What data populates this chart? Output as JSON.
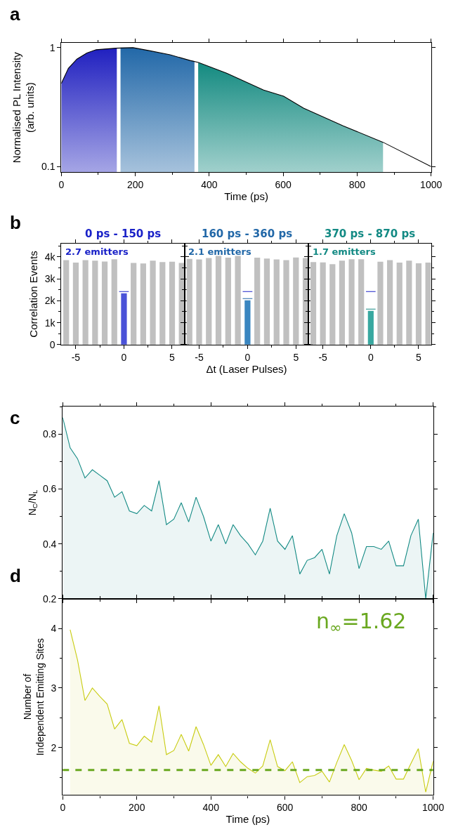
{
  "chart_data": [
    {
      "type": "area",
      "xlabel": "Time (ps)",
      "ylabel": "Normalised PL Intensity\n(arb. units)",
      "annotations": [
        "a"
      ],
      "log": "y",
      "xlim": [
        0,
        1000
      ],
      "xticks": [
        0,
        200,
        400,
        600,
        800,
        1000
      ],
      "ylim": [
        0.09,
        1.09
      ],
      "yticks": [
        0.1,
        1
      ],
      "grid": false,
      "marker": "none",
      "series": [
        {
          "color": "#2020c0",
          "x": [
            0,
            19,
            42,
            69,
            94,
            148,
            150
          ],
          "values": [
            0.5,
            0.67,
            0.8,
            0.9,
            0.96,
            0.99,
            0.99
          ]
        },
        {
          "color": "#2268a8",
          "x": [
            160,
            194,
            240,
            294,
            348,
            360
          ],
          "values": [
            1.0,
            1.0,
            0.94,
            0.87,
            0.78,
            0.77
          ]
        },
        {
          "color": "#138a80",
          "x": [
            370,
            447,
            547,
            601,
            655,
            762,
            870
          ],
          "values": [
            0.75,
            0.61,
            0.44,
            0.39,
            0.31,
            0.22,
            0.16
          ]
        },
        {
          "type": "line",
          "color": "#000000",
          "x": [
            0,
            19,
            42,
            69,
            94,
            148,
            194,
            240,
            294,
            348,
            371,
            447,
            547,
            601,
            655,
            762,
            870,
            1000
          ],
          "values": [
            0.5,
            0.67,
            0.8,
            0.9,
            0.96,
            0.99,
            1.0,
            0.94,
            0.87,
            0.78,
            0.75,
            0.61,
            0.44,
            0.39,
            0.31,
            0.22,
            0.16,
            0.1
          ]
        }
      ]
    },
    {
      "type": "bar",
      "title": "0 ps - 150 ps",
      "ylabel": "Correlation Events",
      "annotations": [
        "b",
        "2.7 emitters"
      ],
      "x": [
        -6,
        -5,
        -4,
        -3,
        -2,
        -1,
        0,
        1,
        2,
        3,
        4,
        5,
        6
      ],
      "xlim": [
        -6.5,
        6.3
      ],
      "xticks": [
        -5,
        0,
        5
      ],
      "ylim": [
        0,
        4600
      ],
      "yticks": [
        0,
        {
          "value": 1000,
          "label": "1k"
        },
        {
          "value": 2000,
          "label": "2k"
        },
        {
          "value": 3000,
          "label": "3k"
        },
        {
          "value": 4000,
          "label": "4k"
        }
      ],
      "grid": false,
      "series": [
        {
          "colors": [
            "#c0c0c0",
            "#c0c0c0",
            "#c0c0c0",
            "#c0c0c0",
            "#c0c0c0",
            "#c0c0c0",
            "#4a52d8",
            "#c0c0c0",
            "#c0c0c0",
            "#c0c0c0",
            "#c0c0c0",
            "#c0c0c0",
            "#c0c0c0"
          ],
          "values": [
            3850,
            3740,
            3850,
            3830,
            3790,
            3890,
            2340,
            3720,
            3700,
            3830,
            3760,
            3780,
            3720
          ]
        },
        {
          "type": "line",
          "color": "#1a22c8",
          "x": [
            -0.5,
            0.5
          ],
          "values": [
            2420,
            2420
          ]
        }
      ]
    },
    {
      "type": "bar",
      "title": "160 ps - 360 ps",
      "xlabel": "Δt (Laser Pulses)",
      "annotations": [
        "2.1 emitters"
      ],
      "x": [
        -6,
        -5,
        -4,
        -3,
        -2,
        -1,
        0,
        1,
        2,
        3,
        4,
        5,
        6
      ],
      "xlim": [
        -6.5,
        6.3
      ],
      "xticks": [
        -5,
        0,
        5
      ],
      "ylim": [
        0,
        4600
      ],
      "yticks": [
        0,
        1000,
        2000,
        3000,
        4000
      ],
      "tick_labels": "x",
      "grid": false,
      "series": [
        {
          "colors": [
            "#c0c0c0",
            "#c0c0c0",
            "#c0c0c0",
            "#c0c0c0",
            "#c0c0c0",
            "#c0c0c0",
            "#3a86c0",
            "#c0c0c0",
            "#c0c0c0",
            "#c0c0c0",
            "#c0c0c0",
            "#c0c0c0",
            "#c0c0c0"
          ],
          "values": [
            3910,
            3880,
            3950,
            4040,
            3960,
            4040,
            2020,
            3960,
            3920,
            3880,
            3850,
            3970,
            3950
          ]
        },
        {
          "type": "line",
          "color": "#1a22c8",
          "x": [
            -0.5,
            0.5
          ],
          "values": [
            2420,
            2420
          ]
        },
        {
          "type": "line",
          "color": "#2268a8",
          "x": [
            -0.5,
            0.5
          ],
          "values": [
            2100,
            2100
          ]
        }
      ]
    },
    {
      "type": "bar",
      "title": "370 ps - 870 ps",
      "annotations": [
        "1.7 emitters"
      ],
      "x": [
        -6,
        -5,
        -4,
        -3,
        -2,
        -1,
        0,
        1,
        2,
        3,
        4,
        5,
        6
      ],
      "xlim": [
        -6.5,
        6.3
      ],
      "xticks": [
        -5,
        0,
        5
      ],
      "ylim": [
        0,
        4600
      ],
      "yticks": [
        0,
        1000,
        2000,
        3000,
        4000
      ],
      "tick_labels": "x",
      "grid": false,
      "series": [
        {
          "colors": [
            "#c0c0c0",
            "#c0c0c0",
            "#c0c0c0",
            "#c0c0c0",
            "#c0c0c0",
            "#c0c0c0",
            "#38a8a0",
            "#c0c0c0",
            "#c0c0c0",
            "#c0c0c0",
            "#c0c0c0",
            "#c0c0c0",
            "#c0c0c0"
          ],
          "values": [
            3760,
            3750,
            3670,
            3830,
            3890,
            3890,
            1540,
            3780,
            3850,
            3740,
            3830,
            3710,
            3740
          ]
        },
        {
          "type": "line",
          "color": "#1a22c8",
          "x": [
            -0.5,
            0.5
          ],
          "values": [
            2420,
            2420
          ]
        },
        {
          "type": "line",
          "color": "#138a84",
          "x": [
            -0.5,
            0.5
          ],
          "values": [
            1620,
            1620
          ]
        }
      ]
    },
    {
      "type": "area",
      "ylabel": "N$_{C}$/N$_{L}$",
      "annotations": [
        "c"
      ],
      "x": [
        0,
        20,
        40,
        60,
        80,
        100,
        120,
        140,
        160,
        180,
        200,
        220,
        240,
        260,
        280,
        300,
        320,
        340,
        360,
        380,
        400,
        420,
        440,
        460,
        480,
        500,
        520,
        540,
        560,
        580,
        600,
        620,
        640,
        660,
        680,
        700,
        720,
        740,
        760,
        780,
        800,
        820,
        840,
        860,
        880,
        900,
        920,
        940,
        960,
        980,
        1000
      ],
      "xlim": [
        0,
        1000
      ],
      "xticks": [
        0,
        200,
        400,
        600,
        800,
        1000
      ],
      "ylim": [
        0.2,
        0.9
      ],
      "yticks": [
        0.2,
        0.4,
        0.6,
        0.8
      ],
      "tick_labels": "y",
      "grid": false,
      "marker": "none",
      "series": [
        {
          "color": "#138a84",
          "values": [
            0.86,
            0.75,
            0.71,
            0.64,
            0.67,
            0.65,
            0.63,
            0.57,
            0.59,
            0.52,
            0.51,
            0.54,
            0.52,
            0.63,
            0.47,
            0.49,
            0.55,
            0.48,
            0.57,
            0.5,
            0.41,
            0.47,
            0.4,
            0.47,
            0.43,
            0.4,
            0.36,
            0.41,
            0.53,
            0.41,
            0.38,
            0.43,
            0.29,
            0.34,
            0.35,
            0.38,
            0.29,
            0.43,
            0.51,
            0.44,
            0.31,
            0.39,
            0.39,
            0.38,
            0.41,
            0.32,
            0.32,
            0.43,
            0.49,
            0.2,
            0.44
          ]
        }
      ]
    },
    {
      "type": "area",
      "xlabel": "Time (ps)",
      "ylabel": "Number of\nIndependent Emitting Sites",
      "annotations": [
        "d",
        "n$_{∞}$=1.62"
      ],
      "xlim": [
        0,
        1000
      ],
      "xticks": [
        0,
        200,
        400,
        600,
        800,
        1000
      ],
      "ylim": [
        1.2,
        4.5
      ],
      "yticks": [
        2,
        3,
        4
      ],
      "grid": false,
      "marker": "none",
      "ref_lines": [
        {
          "axis": "y",
          "value": 1.62,
          "color": "#6aa820",
          "line_style": "dashed"
        }
      ],
      "series": [
        {
          "color": "#c8cc10",
          "x": [
            20,
            40,
            60,
            80,
            100,
            120,
            140,
            160,
            180,
            200,
            220,
            240,
            260,
            280,
            300,
            320,
            340,
            360,
            380,
            400,
            420,
            440,
            460,
            480,
            500,
            520,
            540,
            560,
            580,
            600,
            620,
            640,
            660,
            680,
            700,
            720,
            740,
            760,
            780,
            800,
            820,
            840,
            860,
            880,
            900,
            920,
            940,
            960,
            980,
            1000
          ],
          "values": [
            3.98,
            3.47,
            2.79,
            3.0,
            2.86,
            2.73,
            2.31,
            2.47,
            2.07,
            2.03,
            2.19,
            2.09,
            2.7,
            1.88,
            1.95,
            2.22,
            1.94,
            2.35,
            2.05,
            1.7,
            1.88,
            1.68,
            1.9,
            1.76,
            1.65,
            1.57,
            1.69,
            2.13,
            1.68,
            1.61,
            1.76,
            1.41,
            1.51,
            1.53,
            1.6,
            1.42,
            1.75,
            2.05,
            1.78,
            1.46,
            1.65,
            1.62,
            1.6,
            1.69,
            1.47,
            1.47,
            1.73,
            1.98,
            1.25,
            1.77
          ]
        }
      ]
    }
  ]
}
